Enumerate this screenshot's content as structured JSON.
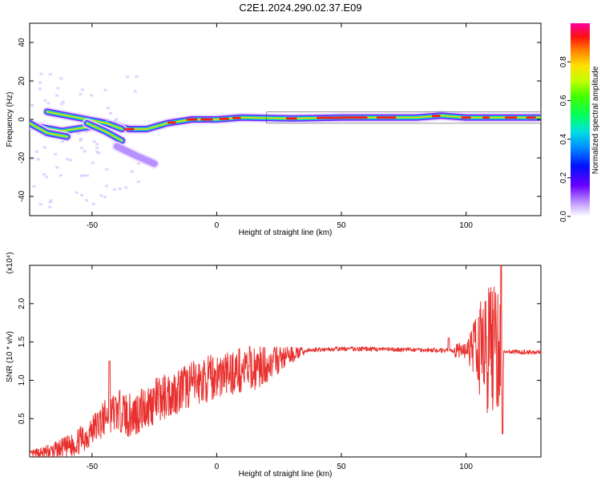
{
  "title": "C2E1.2024.290.02.37.E09",
  "colors": {
    "snr_line": "#e8302e"
  },
  "chart_data": [
    {
      "type": "heatmap",
      "xlabel": "Height of straight line (km)",
      "ylabel": "Frequency (Hz)",
      "xlim": [
        -75,
        130
      ],
      "ylim": [
        -50,
        50
      ],
      "xticks": [
        -50,
        0,
        50,
        100
      ],
      "yticks": [
        -40,
        -20,
        0,
        20,
        40
      ],
      "colorbar": {
        "label": "Normalized spectral amplitude",
        "range": [
          0,
          1
        ],
        "ticks": [
          "0.0",
          "0.2",
          "0.4",
          "0.6",
          "0.8"
        ]
      },
      "ridges": [
        {
          "name": "main",
          "points": [
            [
              -75,
              -3
            ],
            [
              -62,
              -6
            ],
            [
              -52,
              -4
            ],
            [
              -42,
              -3
            ],
            [
              -35,
              -5
            ],
            [
              -28,
              -5
            ],
            [
              -20,
              -2
            ],
            [
              -10,
              0
            ],
            [
              0,
              0
            ],
            [
              10,
              1
            ],
            [
              30,
              0.5
            ],
            [
              50,
              1
            ],
            [
              80,
              1
            ],
            [
              90,
              2
            ],
            [
              100,
              1
            ],
            [
              115,
              1
            ],
            [
              130,
              1
            ]
          ]
        },
        {
          "name": "upper",
          "points": [
            [
              -68,
              4
            ],
            [
              -60,
              2
            ],
            [
              -52,
              0
            ],
            [
              -44,
              -2
            ],
            [
              -38,
              -5
            ]
          ]
        },
        {
          "name": "lower",
          "points": [
            [
              -75,
              -2
            ],
            [
              -68,
              -7
            ],
            [
              -60,
              -9
            ]
          ]
        },
        {
          "name": "lower-branch",
          "points": [
            [
              -52,
              -2
            ],
            [
              -45,
              -6
            ],
            [
              -38,
              -11
            ]
          ]
        },
        {
          "name": "faint-tail",
          "points": [
            [
              -40,
              -14
            ],
            [
              -32,
              -19
            ],
            [
              -25,
              -23
            ]
          ]
        }
      ]
    },
    {
      "type": "line",
      "xlabel": "Height of straight line (km)",
      "ylabel": "SNR (10 * v/v)",
      "y_multiplier": "(x10⁴)",
      "xlim": [
        -75,
        130
      ],
      "ylim": [
        0,
        2.5
      ],
      "xticks": [
        -50,
        0,
        50,
        100
      ],
      "yticks": [
        "0.5",
        "1.0",
        "1.5",
        "2.0"
      ],
      "series": [
        {
          "values": [
            [
              -75,
              0.03
            ],
            [
              -65,
              0.08
            ],
            [
              -58,
              0.15
            ],
            [
              -52,
              0.28
            ],
            [
              -47,
              0.45
            ],
            [
              -42,
              0.58
            ],
            [
              -38,
              0.6
            ],
            [
              -35,
              0.52
            ],
            [
              -30,
              0.62
            ],
            [
              -25,
              0.72
            ],
            [
              -20,
              0.8
            ],
            [
              -15,
              0.88
            ],
            [
              -10,
              0.95
            ],
            [
              -5,
              1.0
            ],
            [
              0,
              1.06
            ],
            [
              5,
              1.1
            ],
            [
              10,
              1.13
            ],
            [
              15,
              1.16
            ],
            [
              20,
              1.2
            ],
            [
              25,
              1.27
            ],
            [
              30,
              1.33
            ],
            [
              35,
              1.38
            ],
            [
              40,
              1.4
            ],
            [
              50,
              1.41
            ],
            [
              60,
              1.41
            ],
            [
              70,
              1.4
            ],
            [
              80,
              1.4
            ],
            [
              90,
              1.39
            ],
            [
              100,
              1.39
            ],
            [
              105,
              1.4
            ],
            [
              110,
              1.4
            ],
            [
              115,
              1.38
            ],
            [
              120,
              1.37
            ],
            [
              130,
              1.37
            ]
          ]
        }
      ]
    }
  ]
}
